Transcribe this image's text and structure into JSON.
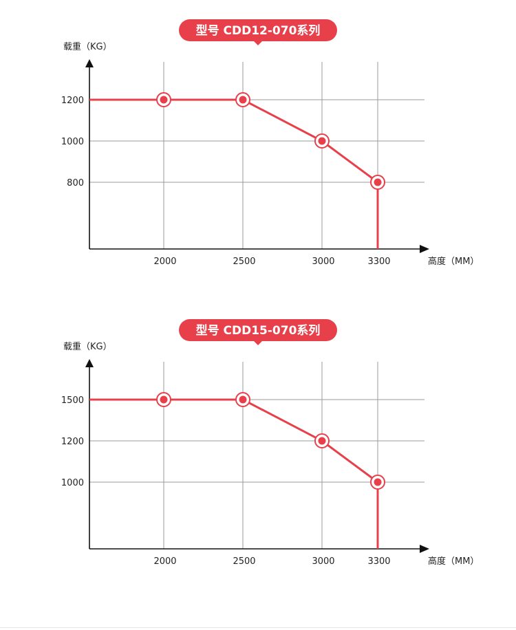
{
  "colors": {
    "accent": "#e8404b",
    "grid": "#9a9a9a",
    "axis": "#111111",
    "text": "#222222"
  },
  "chart_data": [
    {
      "type": "line",
      "title": "型号 CDD12-070系列",
      "ylabel": "载重（KG）",
      "xlabel": "高度（MM）",
      "x_ticks": [
        2000,
        2500,
        3000,
        3300
      ],
      "y_ticks": [
        800,
        1000,
        1200
      ],
      "points": [
        {
          "x": 2000,
          "y": 1200
        },
        {
          "x": 2500,
          "y": 1200
        },
        {
          "x": 3000,
          "y": 1000
        },
        {
          "x": 3300,
          "y": 800
        }
      ]
    },
    {
      "type": "line",
      "title": "型号 CDD15-070系列",
      "ylabel": "载重（KG）",
      "xlabel": "高度（MM）",
      "x_ticks": [
        2000,
        2500,
        3000,
        3300
      ],
      "y_ticks": [
        1000,
        1200,
        1500
      ],
      "points": [
        {
          "x": 2000,
          "y": 1500
        },
        {
          "x": 2500,
          "y": 1500
        },
        {
          "x": 3000,
          "y": 1200
        },
        {
          "x": 3300,
          "y": 1000
        }
      ]
    }
  ]
}
